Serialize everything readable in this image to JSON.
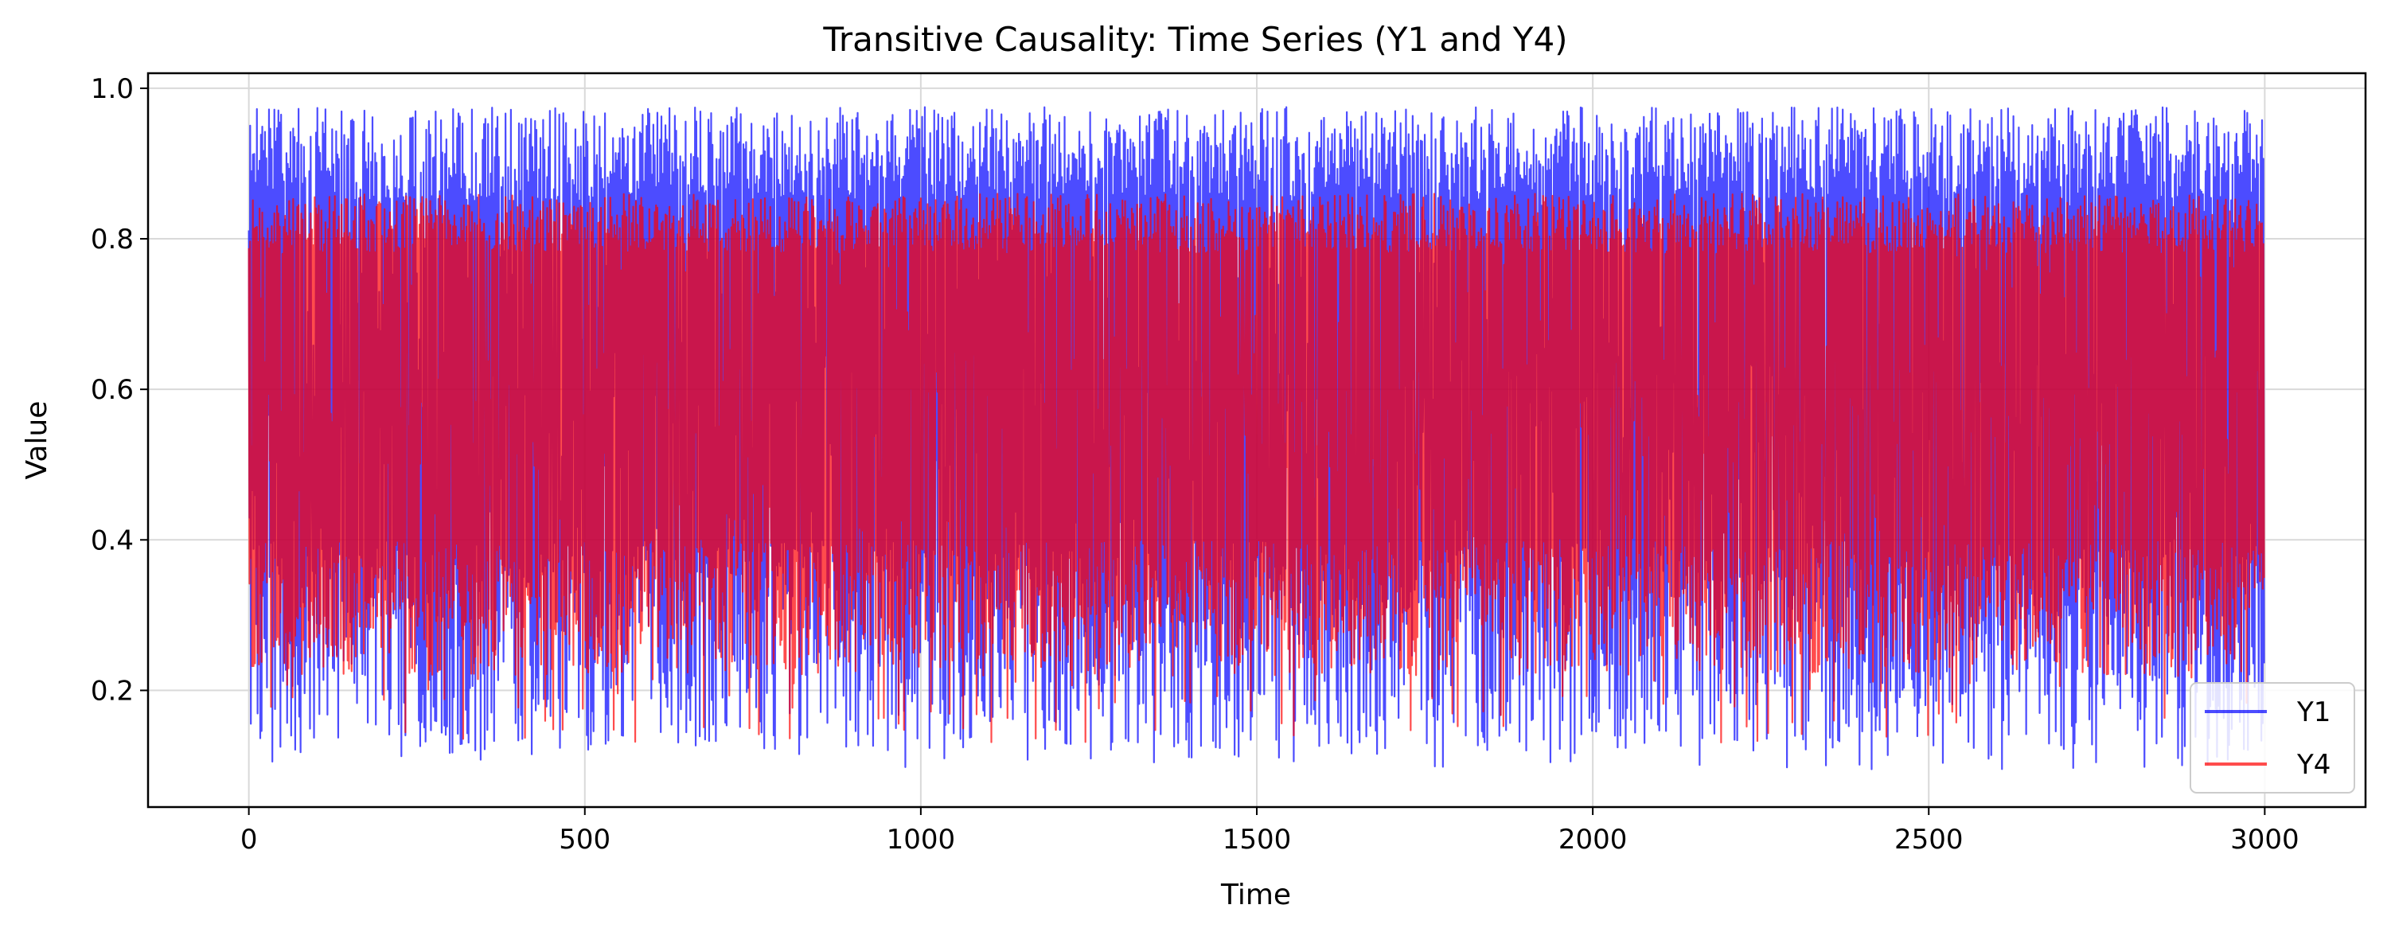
{
  "chart_data": {
    "type": "line",
    "title": "Transitive Causality: Time Series (Y1 and Y4)",
    "xlabel": "Time",
    "ylabel": "Value",
    "xlim": [
      -150,
      3150
    ],
    "ylim": [
      0.045,
      1.02
    ],
    "xticks": [
      0,
      500,
      1000,
      1500,
      2000,
      2500,
      3000
    ],
    "xtick_labels": [
      "0",
      "500",
      "1000",
      "1500",
      "2000",
      "2500",
      "3000"
    ],
    "yticks": [
      0.2,
      0.4,
      0.6,
      0.8,
      1.0
    ],
    "ytick_labels": [
      "0.2",
      "0.4",
      "0.6",
      "0.8",
      "1.0"
    ],
    "grid": true,
    "legend_position": "bottom-right",
    "n_points": 3000,
    "series": [
      {
        "name": "Y1",
        "color": "#0000ff",
        "opacity": 0.7,
        "low_typical": [
          0.12,
          0.4
        ],
        "high_typical": [
          0.85,
          0.975
        ],
        "min": 0.095,
        "max": 0.975
      },
      {
        "name": "Y4",
        "color": "#ff0000",
        "opacity": 0.7,
        "low_typical": [
          0.22,
          0.4
        ],
        "high_typical": [
          0.78,
          0.86
        ],
        "min": 0.13,
        "max": 0.905
      }
    ]
  }
}
